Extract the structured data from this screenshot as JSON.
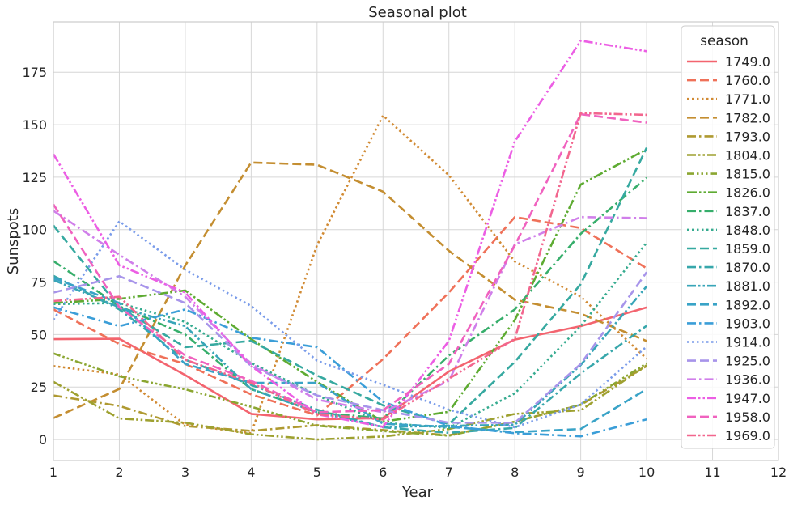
{
  "chart_data": {
    "type": "line",
    "title": "Seasonal plot",
    "xlabel": "Year",
    "ylabel": "Sunspots",
    "xlim": [
      1,
      12
    ],
    "ylim": [
      -10,
      199
    ],
    "xticks": [
      1,
      2,
      3,
      4,
      5,
      6,
      7,
      8,
      9,
      10,
      11,
      12
    ],
    "yticks": [
      0,
      25,
      50,
      75,
      100,
      125,
      150,
      175
    ],
    "grid": true,
    "legend": {
      "title": "season",
      "placement": "top-right"
    },
    "x": [
      1,
      2,
      3,
      4,
      5,
      6,
      7,
      8,
      9,
      10
    ],
    "series": [
      {
        "name": "1749.0",
        "color": "#f3646f",
        "dash": "solid",
        "values": [
          47.8,
          48.0,
          30.7,
          12.2,
          9.6,
          10.2,
          32.4,
          47.6,
          54.0,
          62.9
        ]
      },
      {
        "name": "1760.0",
        "color": "#ef7159",
        "dash": "dashed",
        "values": [
          62.0,
          45.5,
          36.0,
          21.5,
          11.5,
          38.3,
          70.0,
          106.0,
          100.8,
          81.6
        ]
      },
      {
        "name": "1771.0",
        "color": "#d18a33",
        "dash": "dotted",
        "values": [
          35.0,
          31.0,
          7.0,
          3.0,
          92.6,
          154.4,
          125.9,
          84.8,
          68.1,
          38.5
        ]
      },
      {
        "name": "1782.0",
        "color": "#c48e31",
        "dash": "dashed",
        "values": [
          10.2,
          24.1,
          82.9,
          132.0,
          130.9,
          118.1,
          89.9,
          66.6,
          60.0,
          46.9
        ]
      },
      {
        "name": "1793.0",
        "color": "#af9a31",
        "dash": "dashdot",
        "values": [
          21.0,
          16.0,
          6.4,
          4.1,
          6.8,
          4.5,
          2.0,
          8.5,
          16.5,
          35.0
        ]
      },
      {
        "name": "1804.0",
        "color": "#9ea130",
        "dash": "dashdotdot",
        "values": [
          27.5,
          10.0,
          8.0,
          2.5,
          0.0,
          1.4,
          5.0,
          12.2,
          13.9,
          35.4
        ]
      },
      {
        "name": "1815.0",
        "color": "#8ba631",
        "dash": "dashdotdotdot",
        "values": [
          41.0,
          30.1,
          23.9,
          15.6,
          6.6,
          4.0,
          1.8,
          8.5,
          16.6,
          36.3
        ]
      },
      {
        "name": "1826.0",
        "color": "#5eab32",
        "dash": "dashdotdotdot2",
        "values": [
          65.0,
          67.0,
          71.0,
          47.8,
          27.5,
          8.5,
          13.2,
          56.9,
          121.5,
          138.3
        ]
      },
      {
        "name": "1837.0",
        "color": "#36ae6b",
        "dash": "dashdot",
        "values": [
          85.0,
          63.5,
          50.0,
          24.0,
          13.0,
          10.0,
          40.0,
          62.0,
          98.0,
          124.7
        ]
      },
      {
        "name": "1848.0",
        "color": "#35ab8f",
        "dash": "dotted",
        "values": [
          64.5,
          65.0,
          56.0,
          36.5,
          21.0,
          8.0,
          5.5,
          22.0,
          54.0,
          93.8
        ]
      },
      {
        "name": "1859.0",
        "color": "#36a9a0",
        "dash": "dashed",
        "values": [
          102.0,
          63.0,
          44.0,
          47.0,
          30.5,
          16.3,
          7.3,
          37.0,
          74.0,
          139.0
        ]
      },
      {
        "name": "1870.0",
        "color": "#37a7ab",
        "dash": "dashdot",
        "values": [
          78.0,
          62.0,
          38.0,
          26.0,
          14.2,
          5.8,
          3.2,
          5.5,
          31.5,
          54.2
        ]
      },
      {
        "name": "1881.0",
        "color": "#38a5b8",
        "dash": "dashdotdot",
        "values": [
          76.0,
          63.0,
          54.0,
          24.0,
          13.0,
          6.0,
          6.5,
          7.0,
          35.5,
          73.0
        ]
      },
      {
        "name": "1892.0",
        "color": "#39a3c7",
        "dash": "dashed",
        "values": [
          77.0,
          65.0,
          36.0,
          27.0,
          27.0,
          7.5,
          6.0,
          3.5,
          5.0,
          24.0
        ]
      },
      {
        "name": "1903.0",
        "color": "#3b9ed8",
        "dash": "dashdot",
        "values": [
          63.0,
          54.0,
          62.0,
          48.5,
          44.0,
          18.0,
          6.5,
          3.0,
          1.5,
          9.6
        ]
      },
      {
        "name": "1914.0",
        "color": "#7a9cea",
        "dash": "dotted",
        "values": [
          57.0,
          104.0,
          80.9,
          63.6,
          37.6,
          26.1,
          14.2,
          5.8,
          16.7,
          44.3
        ]
      },
      {
        "name": "1925.0",
        "color": "#a794ea",
        "dash": "dashed",
        "values": [
          70.0,
          77.8,
          65.0,
          35.0,
          21.0,
          14.0,
          8.0,
          8.0,
          36.0,
          79.7
        ]
      },
      {
        "name": "1936.0",
        "color": "#d07fea",
        "dash": "dashdot",
        "values": [
          109.0,
          88.0,
          68.0,
          36.0,
          19.0,
          13.0,
          28.0,
          93.0,
          106.0,
          105.5
        ]
      },
      {
        "name": "1947.0",
        "color": "#ec5ee4",
        "dash": "dashdotdot",
        "values": [
          136.0,
          83.0,
          70.0,
          35.0,
          12.0,
          6.0,
          47.0,
          142.0,
          190.0,
          185.0
        ]
      },
      {
        "name": "1958.0",
        "color": "#f062bf",
        "dash": "dashed",
        "values": [
          112.0,
          63.0,
          40.0,
          28.0,
          13.0,
          14.0,
          36.0,
          92.5,
          155.0,
          151.0
        ]
      },
      {
        "name": "1969.0",
        "color": "#f2668e",
        "dash": "dashdotdot",
        "values": [
          66.0,
          68.0,
          38.0,
          27.0,
          12.0,
          9.5,
          29.0,
          48.0,
          155.5,
          154.7
        ]
      }
    ]
  }
}
